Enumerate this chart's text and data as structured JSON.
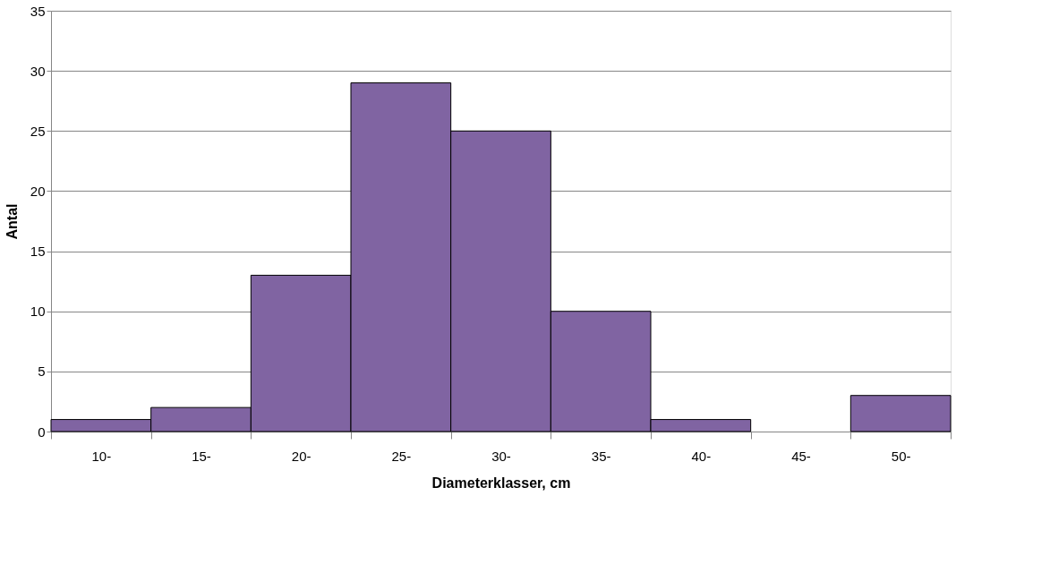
{
  "chart_data": {
    "type": "bar",
    "categories": [
      "10-",
      "15-",
      "20-",
      "25-",
      "30-",
      "35-",
      "40-",
      "45-",
      "50-"
    ],
    "values": [
      1,
      2,
      13,
      29,
      25,
      10,
      1,
      0,
      3
    ],
    "color": "#8064a2",
    "xlabel": "Diameterklasser, cm",
    "ylabel": "Antal",
    "ylim": [
      0,
      35
    ],
    "yticks": [
      0,
      5,
      10,
      15,
      20,
      25,
      30,
      35
    ],
    "grid": "y"
  }
}
